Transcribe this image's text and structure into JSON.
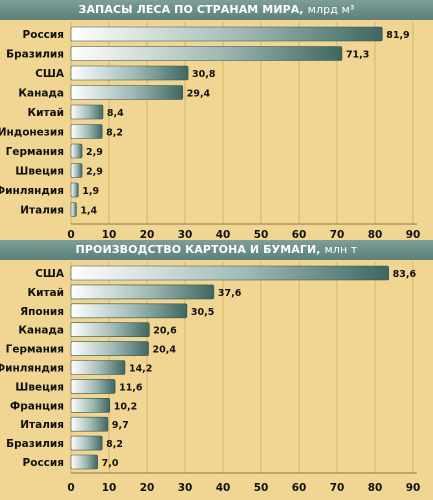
{
  "colors": {
    "background": "#f1d592",
    "header": "#6a8d88",
    "bar_light": "#ffffff",
    "bar_dark": "#3f6762",
    "grid": "#c9a85c"
  },
  "chart_data": [
    {
      "type": "bar",
      "orientation": "horizontal",
      "title": "ЗАПАСЫ ЛЕСА ПО СТРАНАМ МИРА,",
      "unit": "млрд м³",
      "categories": [
        "Россия",
        "Бразилия",
        "США",
        "Канада",
        "Китай",
        "Индонезия",
        "Германия",
        "Швеция",
        "Финляндия",
        "Италия"
      ],
      "values": [
        81.9,
        71.3,
        30.8,
        29.4,
        8.4,
        8.2,
        2.9,
        2.9,
        1.9,
        1.4
      ],
      "value_labels": [
        "81,9",
        "71,3",
        "30,8",
        "29,4",
        "8,4",
        "8,2",
        "2,9",
        "2,9",
        "1,9",
        "1,4"
      ],
      "xlim": [
        0,
        90
      ],
      "ticks": [
        0,
        10,
        20,
        30,
        40,
        50,
        60,
        70,
        80,
        90
      ],
      "grid": true
    },
    {
      "type": "bar",
      "orientation": "horizontal",
      "title": "ПРОИЗВОДСТВО КАРТОНА И БУМАГИ,",
      "unit": "млн т",
      "categories": [
        "США",
        "Китай",
        "Япония",
        "Канада",
        "Германия",
        "Финляндия",
        "Швеция",
        "Франция",
        "Италия",
        "Бразилия",
        "Россия"
      ],
      "values": [
        83.6,
        37.6,
        30.5,
        20.6,
        20.4,
        14.2,
        11.6,
        10.2,
        9.7,
        8.2,
        7.0
      ],
      "value_labels": [
        "83,6",
        "37,6",
        "30,5",
        "20,6",
        "20,4",
        "14,2",
        "11,6",
        "10,2",
        "9,7",
        "8,2",
        "7,0"
      ],
      "xlim": [
        0,
        90
      ],
      "ticks": [
        0,
        10,
        20,
        30,
        40,
        50,
        60,
        70,
        80,
        90
      ],
      "grid": true
    }
  ]
}
